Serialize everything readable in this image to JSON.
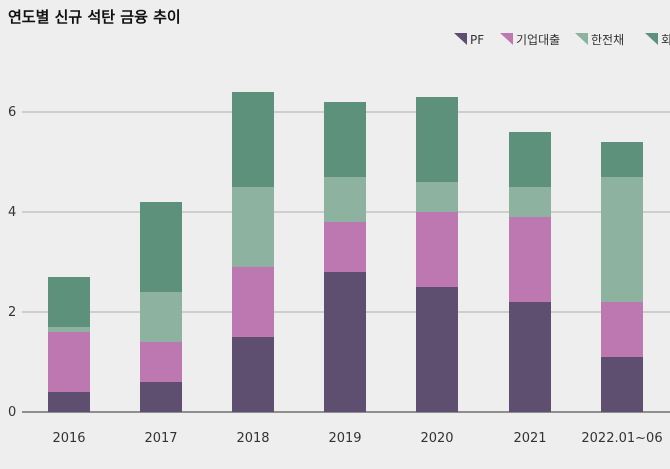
{
  "chart_data": {
    "type": "bar",
    "stacked": true,
    "title": "연도별 신규 석탄 금융 추이",
    "categories": [
      "2016",
      "2017",
      "2018",
      "2019",
      "2020",
      "2021",
      "2022.01~06"
    ],
    "series": [
      {
        "name": "PF",
        "color": "#5e4f71",
        "values": [
          0.4,
          0.6,
          1.5,
          2.8,
          2.5,
          2.2,
          1.1
        ]
      },
      {
        "name": "기업대출",
        "color": "#be78b1",
        "values": [
          1.2,
          0.8,
          1.4,
          1.0,
          1.5,
          1.7,
          1.1
        ]
      },
      {
        "name": "한전채",
        "color": "#8db3a0",
        "values": [
          0.1,
          1.0,
          1.6,
          0.9,
          0.6,
          0.6,
          2.5
        ]
      },
      {
        "name": "회사",
        "color": "#5e917c",
        "values": [
          1.0,
          1.8,
          1.9,
          1.5,
          1.7,
          1.1,
          0.7
        ]
      }
    ],
    "ylim": [
      0,
      7
    ],
    "yticks": [
      0,
      2,
      4,
      6
    ],
    "grid": true,
    "legend": "top-right"
  }
}
